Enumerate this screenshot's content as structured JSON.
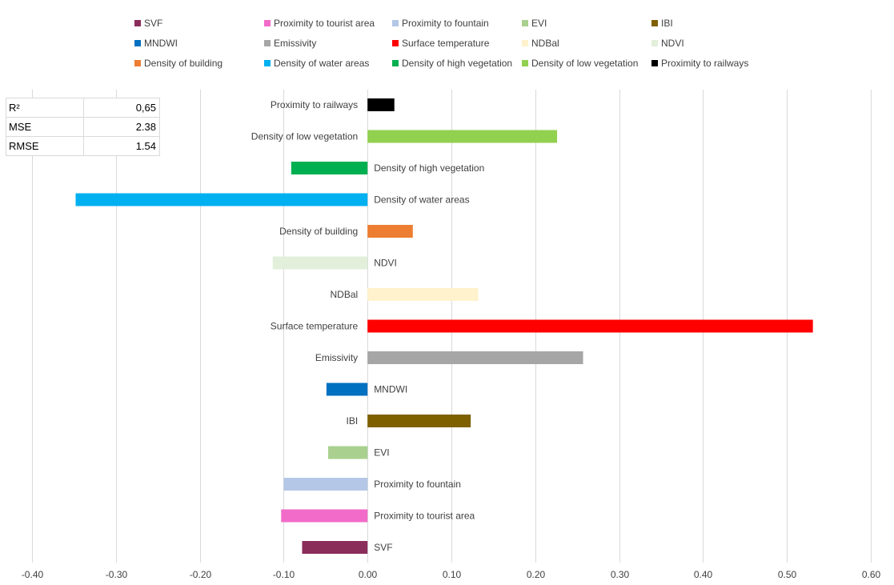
{
  "chart_data": {
    "type": "bar",
    "orientation": "horizontal",
    "categories": [
      "SVF",
      "Proximity to tourist area",
      "Proximity to fountain",
      "EVI",
      "IBI",
      "MNDWI",
      "Emissivity",
      "Surface temperature",
      "NDBal",
      "NDVI",
      "Density of building",
      "Density of water areas",
      "Density of high vegetation",
      "Density of  low vegetation",
      "Proximity to railways"
    ],
    "values": [
      -0.078,
      -0.103,
      -0.1,
      -0.047,
      0.123,
      -0.049,
      0.257,
      0.531,
      0.132,
      -0.113,
      0.054,
      -0.348,
      -0.091,
      0.226,
      0.032
    ],
    "colors": [
      "#8B2D5B",
      "#F26BC9",
      "#B4C7E7",
      "#A9D08E",
      "#7F6000",
      "#0070C0",
      "#A6A6A6",
      "#FF0000",
      "#FFF2CC",
      "#E2EFDA",
      "#ED7D31",
      "#00B0F0",
      "#00B050",
      "#92D050",
      "#000000"
    ],
    "xlim": [
      -0.4,
      0.6
    ],
    "xticks": [
      "-0.40",
      "-0.30",
      "-0.20",
      "-0.10",
      "0.00",
      "0.10",
      "0.20",
      "0.30",
      "0.40",
      "0.50",
      "0.60"
    ],
    "grid": true,
    "legend_position": "top",
    "legend": [
      {
        "label": "SVF",
        "color": "#8B2D5B"
      },
      {
        "label": "Proximity to tourist area",
        "color": "#F26BC9"
      },
      {
        "label": "Proximity to fountain",
        "color": "#B4C7E7"
      },
      {
        "label": "EVI",
        "color": "#A9D08E"
      },
      {
        "label": "IBI",
        "color": "#7F6000"
      },
      {
        "label": "MNDWI",
        "color": "#0070C0"
      },
      {
        "label": "Emissivity",
        "color": "#A6A6A6"
      },
      {
        "label": "Surface temperature",
        "color": "#FF0000"
      },
      {
        "label": "NDBal",
        "color": "#FFF2CC"
      },
      {
        "label": "NDVI",
        "color": "#E2EFDA"
      },
      {
        "label": "Density of building",
        "color": "#ED7D31"
      },
      {
        "label": "Density of water areas",
        "color": "#00B0F0"
      },
      {
        "label": "Density of high vegetation",
        "color": "#00B050"
      },
      {
        "label": "Density of  low vegetation",
        "color": "#92D050"
      },
      {
        "label": "Proximity to railways",
        "color": "#000000"
      }
    ]
  },
  "stats_table": [
    {
      "label": "R²",
      "value": "0,65"
    },
    {
      "label": "MSE",
      "value": "2.38"
    },
    {
      "label": "RMSE",
      "value": "1.54"
    }
  ]
}
